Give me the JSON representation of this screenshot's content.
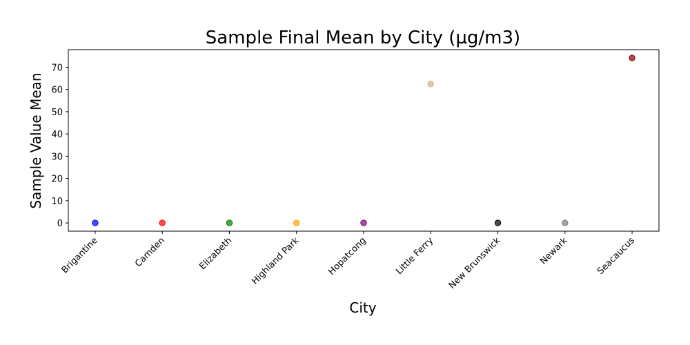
{
  "chart_data": {
    "type": "scatter",
    "title": "Sample Final Mean by City (µg/m3)",
    "xlabel": "City",
    "ylabel": "Sample Value Mean",
    "categories": [
      "Brigantine",
      "Camden",
      "Elizabeth",
      "Highland Park",
      "Hopatcong",
      "Little Ferry",
      "New Brunswick",
      "Newark",
      "Seacaucus"
    ],
    "values": [
      0,
      0,
      0,
      0,
      0,
      62.5,
      0,
      0,
      74.2
    ],
    "colors": [
      "#0000ff",
      "#ff0000",
      "#008000",
      "#ffa500",
      "#800080",
      "#d2b48c",
      "#000000",
      "#808080",
      "#8b0000"
    ],
    "yticks": [
      0,
      10,
      20,
      30,
      40,
      50,
      60,
      70
    ],
    "ylim": [
      -3.7,
      77.9
    ],
    "grid": false,
    "legend": "none"
  }
}
